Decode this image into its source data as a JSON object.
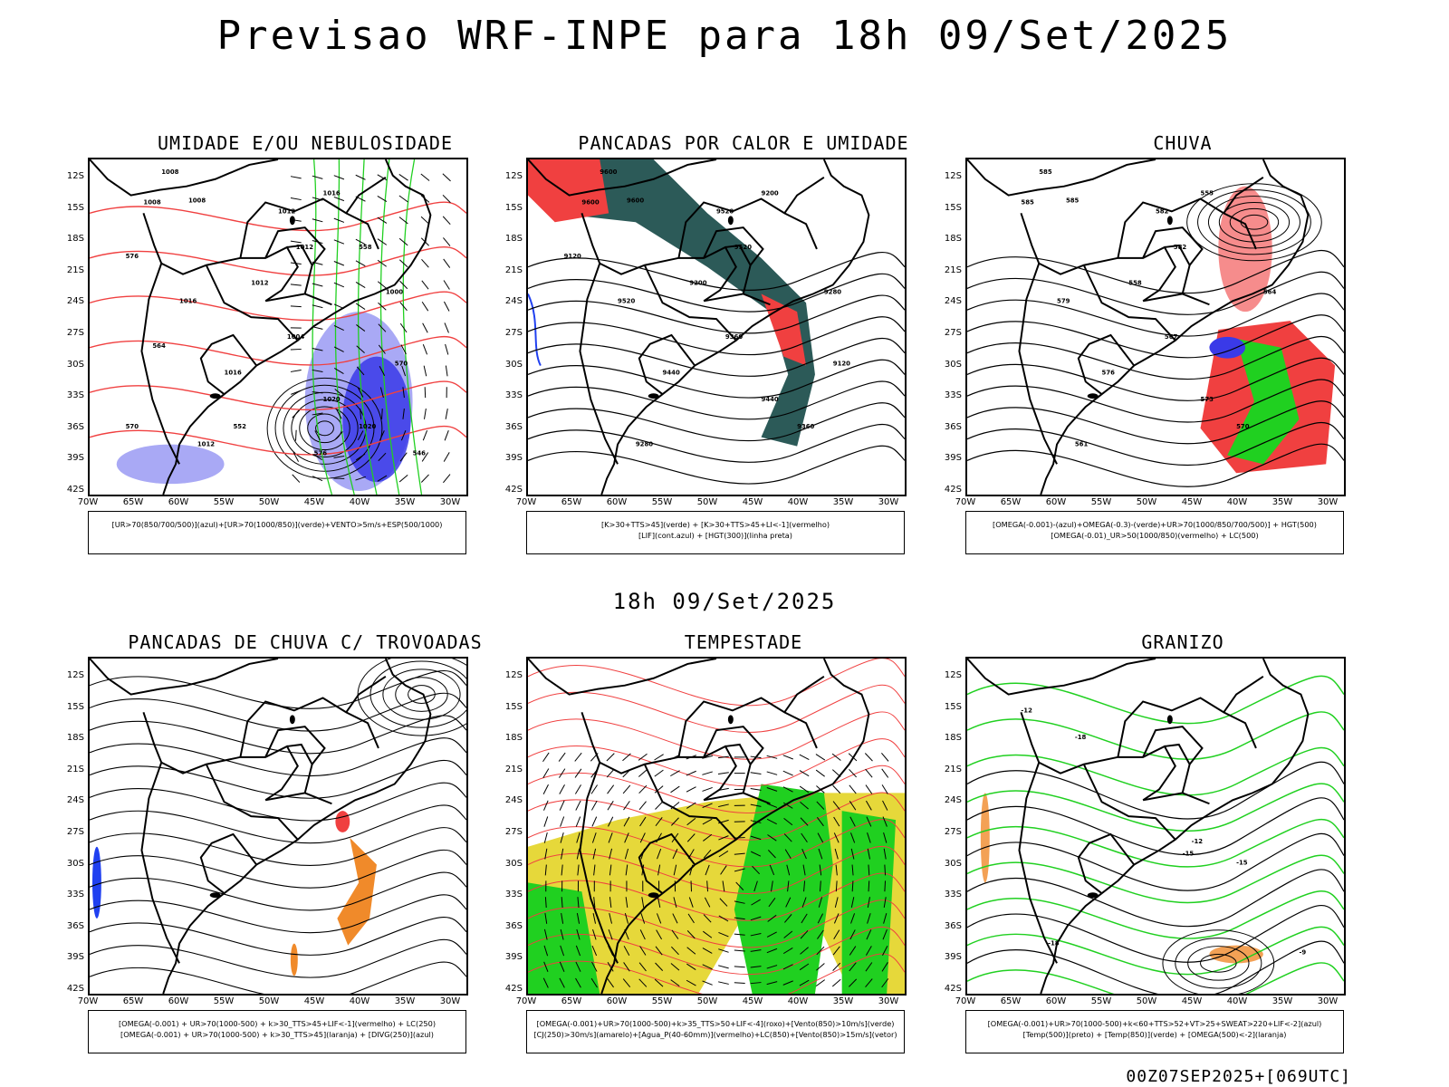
{
  "page": {
    "main_title": "Previsao WRF-INPE  para 18h 09/Set/2025",
    "mid_title": "18h 09/Set/2025",
    "footer_stamp": "00Z07SEP2025+[069UTC]"
  },
  "axes": {
    "lat_labels": [
      "12S",
      "15S",
      "18S",
      "21S",
      "24S",
      "27S",
      "30S",
      "33S",
      "36S",
      "39S",
      "42S"
    ],
    "lon_labels": [
      "70W",
      "65W",
      "60W",
      "55W",
      "50W",
      "45W",
      "40W",
      "35W",
      "30W"
    ]
  },
  "colors": {
    "blue_fill": "#a9a9f5",
    "deep_blue": "#3a3ae8",
    "green": "#20d020",
    "red": "#f04040",
    "dark_teal": "#2c5a58",
    "orange": "#f08a2a",
    "yellow": "#e6d83a",
    "blue_lif": "#2040f0"
  },
  "panels": [
    {
      "title": "UMIDADE E/OU NEBULOSIDADE",
      "legend": [
        "[UR>70(850/700/500)](azul)+[UR>70(1000/850)](verde)+VENTO>5m/s+ESP(500/1000)"
      ],
      "contour_labels": [
        "1008",
        "1008",
        "1008",
        "1012",
        "1012",
        "1016",
        "1016",
        "1020",
        "1020",
        "1004",
        "1000",
        "1012",
        "1012",
        "1016",
        "576",
        "570",
        "564",
        "558",
        "552",
        "546",
        "570",
        "576"
      ]
    },
    {
      "title": "PANCADAS POR CALOR E UMIDADE",
      "legend": [
        "[K>30+TTS>45](verde)  +  [K>30+TTS>45+LI<-1](vermelho)",
        "[LIF](cont.azul)  +  [HGT(300)](linha preta)"
      ],
      "contour_labels": [
        "9600",
        "9600",
        "9600",
        "9520",
        "9520",
        "9520",
        "9440",
        "9440",
        "9360",
        "9360",
        "9280",
        "9280",
        "9200",
        "9200",
        "9120",
        "9120"
      ]
    },
    {
      "title": "CHUVA",
      "legend": [
        "[OMEGA(-0.001)-(azul)+OMEGA(-0.3)-(verde)+UR>70(1000/850/700/500)]  +  HGT(500)",
        "[OMEGA(-0.01)_UR>50(1000/850)(vermelho)  +  LC(500)"
      ],
      "contour_labels": [
        "585",
        "585",
        "585",
        "582",
        "582",
        "579",
        "576",
        "573",
        "570",
        "567",
        "564",
        "561",
        "558",
        "555"
      ]
    },
    {
      "title": "PANCADAS DE CHUVA C/ TROVOADAS",
      "legend": [
        "[OMEGA(-0.001)  +  UR>70(1000-500)  +  k>30_TTS>45+LIF<-1](vermelho)  +  LC(250)",
        "[OMEGA(-0.001)  +  UR>70(1000-500)  +  k>30_TTS>45](laranja)  +  [DIVG(250)](azul)"
      ],
      "contour_labels": []
    },
    {
      "title": "TEMPESTADE",
      "legend": [
        "[OMEGA(-0.001)+UR>70(1000-500)+k>35_TTS>50+LIF<-4](roxo)+[Vento(850)>10m/s](verde)",
        "[CJ(250)>30m/s](amarelo)+[Agua_P(40-60mm)](vermelho)+LC(850)+[Vento(850)>15m/s](vetor)"
      ],
      "contour_labels": []
    },
    {
      "title": "GRANIZO",
      "legend": [
        "[OMEGA(-0.001)+UR>70(1000-500)+k<60+TTS>52+VT>25+SWEAT>220+LIF<-2](azul)",
        "[Temp(500)](preto)  +  [Temp(850)](verde)  +  [OMEGA(500)<-2](laranja)"
      ],
      "contour_labels": [
        "-12",
        "-15",
        "-15",
        "-18",
        "-18",
        "-12",
        "-9"
      ]
    }
  ]
}
